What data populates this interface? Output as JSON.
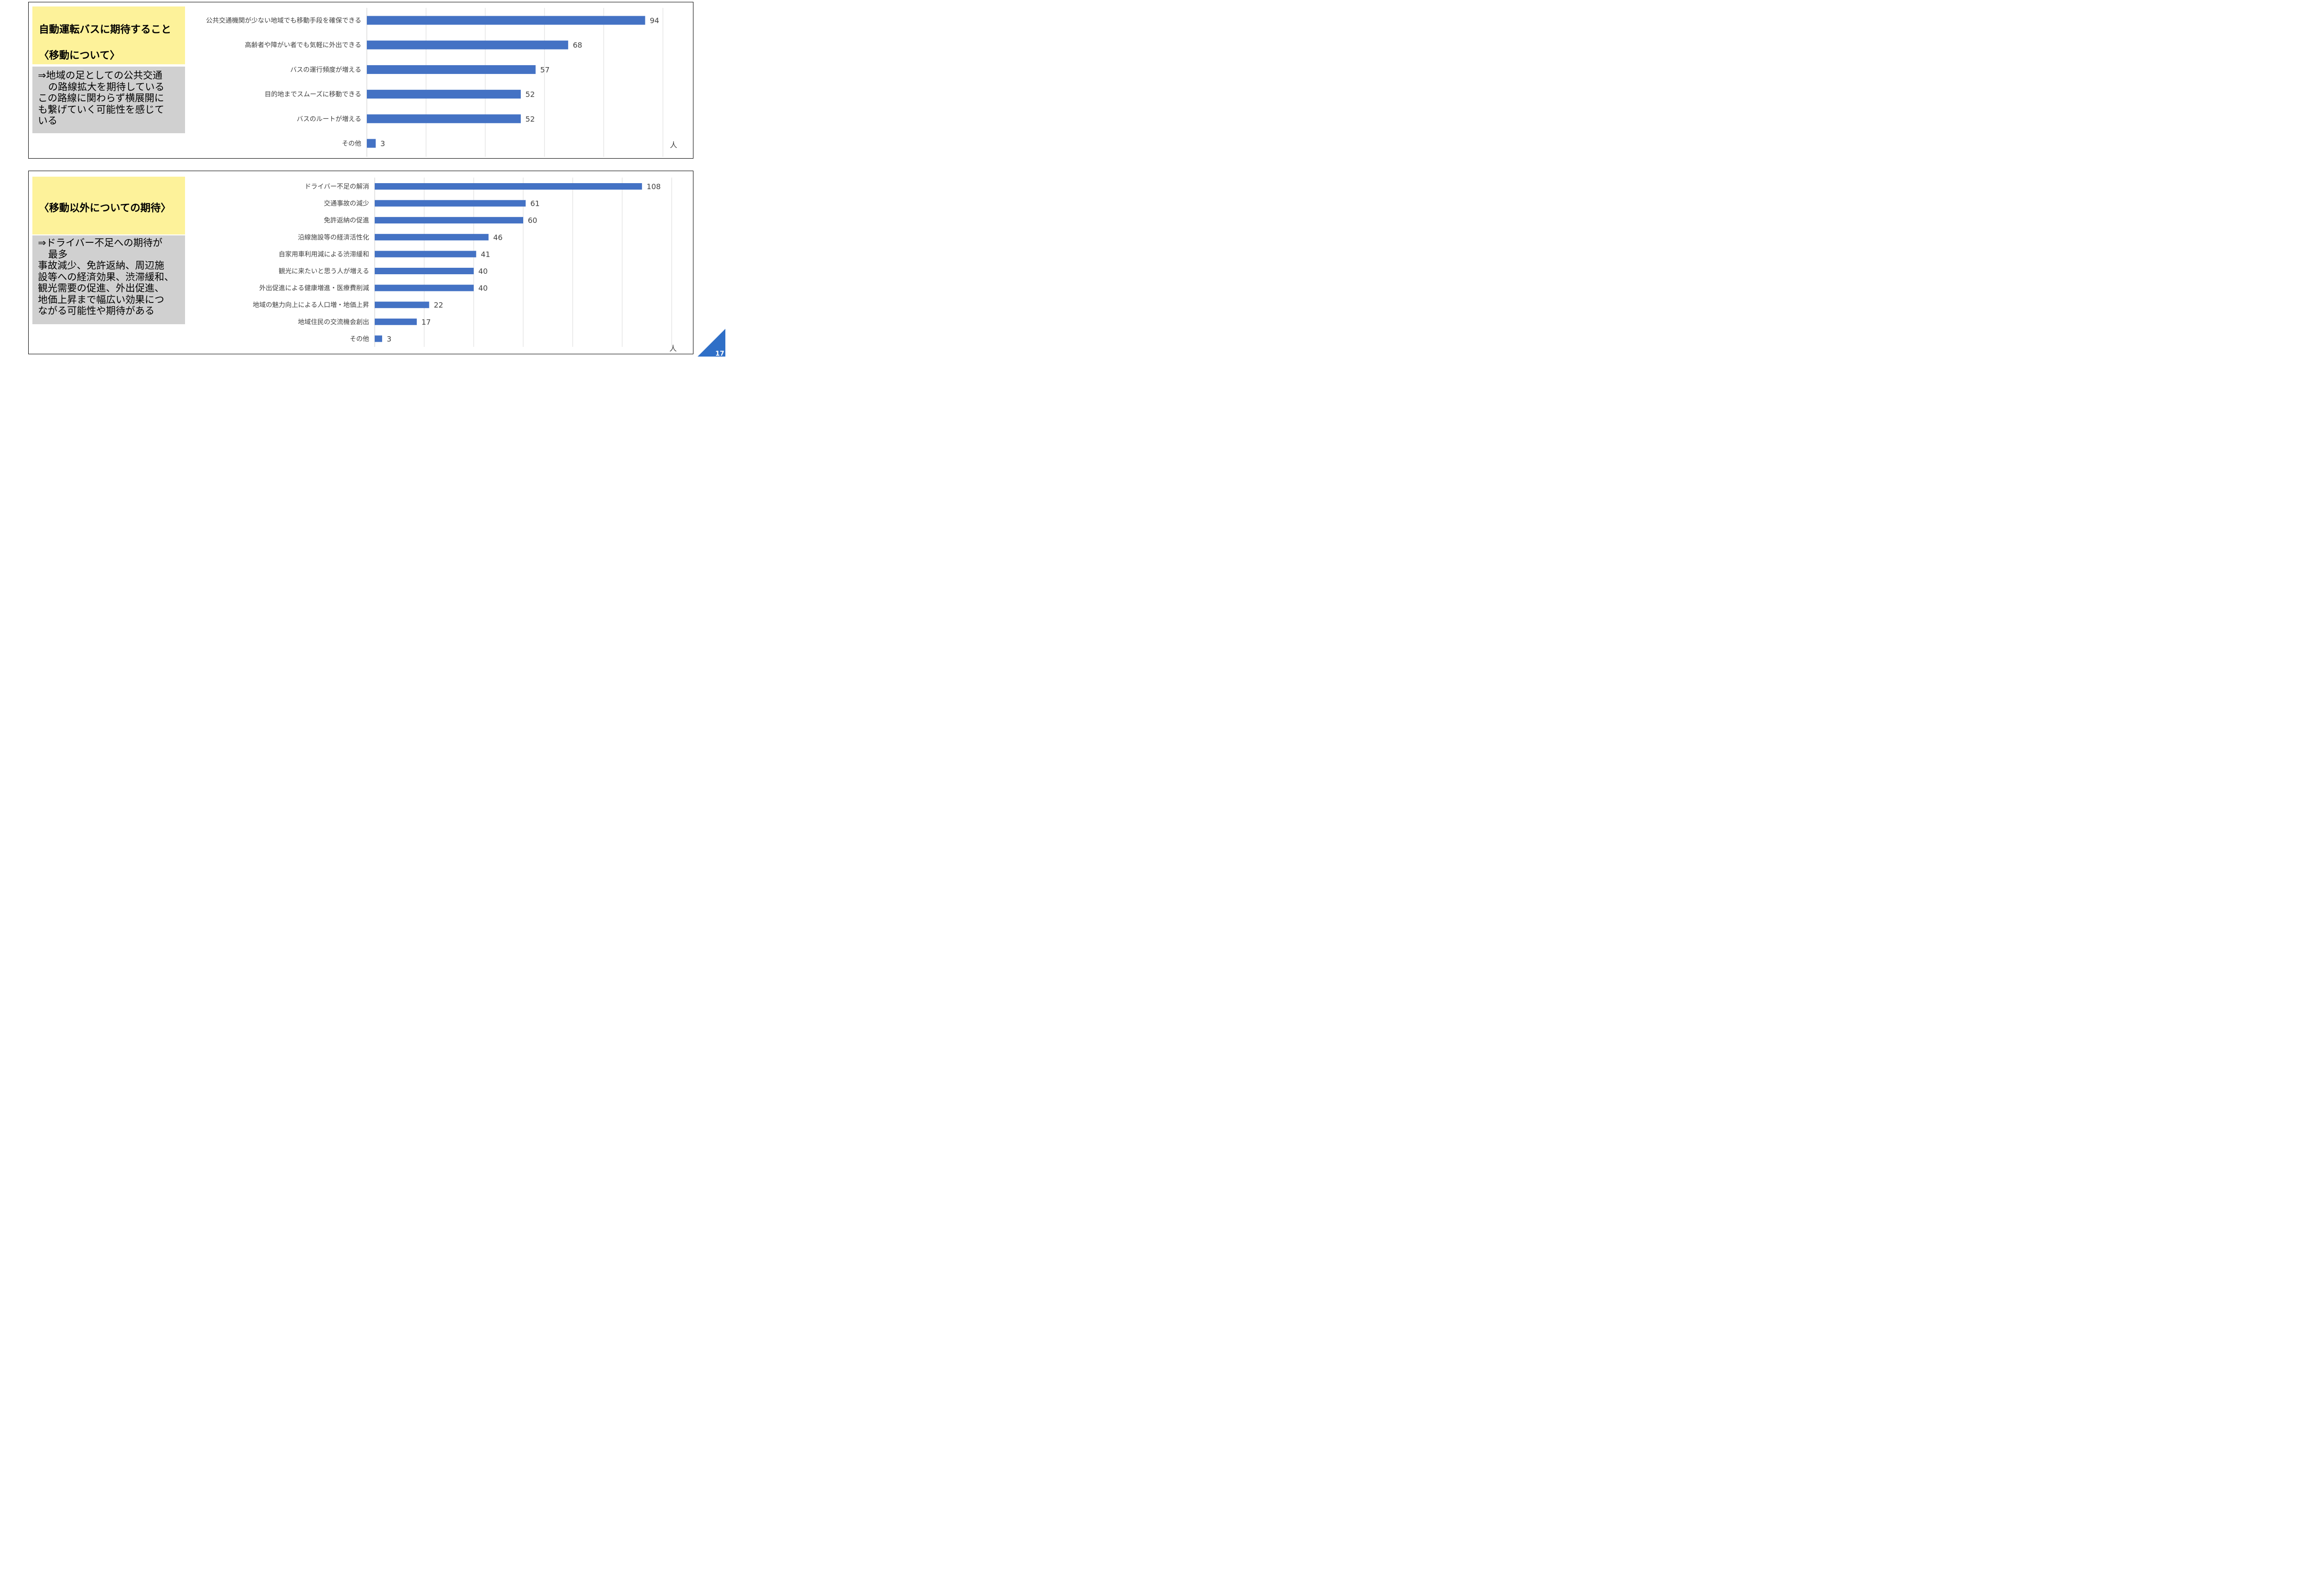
{
  "page_number": "17",
  "colors": {
    "bar": "#4472c4",
    "yellow_box": "#fdf29a",
    "gray_box": "#d0d0d0",
    "corner": "#2f6fc7"
  },
  "panel1": {
    "title_line1": "自動運転バスに期待すること",
    "title_line2": "〈移動について〉",
    "note_lines": [
      "⇒地域の足としての公共交通",
      "の路線拡大を期待している",
      "この路線に関わらず横展開に",
      "も繋げていく可能性を感じて",
      "いる"
    ]
  },
  "panel2": {
    "title": "〈移動以外についての期待〉",
    "note_lines": [
      "⇒ドライバー不足への期待が",
      "最多",
      "事故減少、免許返納、周辺施",
      "設等への経済効果、渋滞緩和、",
      "観光需要の促進、外出促進、",
      "地価上昇まで幅広い効果につ",
      "ながる可能性や期待がある"
    ]
  },
  "chart_data": [
    {
      "type": "bar",
      "orientation": "horizontal",
      "categories": [
        "公共交通機関が少ない地域でも移動手段を確保できる",
        "高齢者や障がい者でも気軽に外出できる",
        "バスの運行頻度が増える",
        "目的地までスムーズに移動できる",
        "バスのルートが増える",
        "その他"
      ],
      "values": [
        94,
        68,
        57,
        52,
        52,
        3
      ],
      "unit": "人",
      "xlim": [
        0,
        100
      ],
      "grid": true
    },
    {
      "type": "bar",
      "orientation": "horizontal",
      "categories": [
        "ドライバー不足の解消",
        "交通事故の減少",
        "免許返納の促進",
        "沿線施設等の経済活性化",
        "自家用車利用減による渋滞緩和",
        "観光に来たいと思う人が増える",
        "外出促進による健康増進・医療費削減",
        "地域の魅力向上による人口増・地価上昇",
        "地域住民の交流機会創出",
        "その他"
      ],
      "values": [
        108,
        61,
        60,
        46,
        41,
        40,
        40,
        22,
        17,
        3
      ],
      "unit": "人",
      "xlim": [
        0,
        120
      ],
      "grid": true
    }
  ]
}
